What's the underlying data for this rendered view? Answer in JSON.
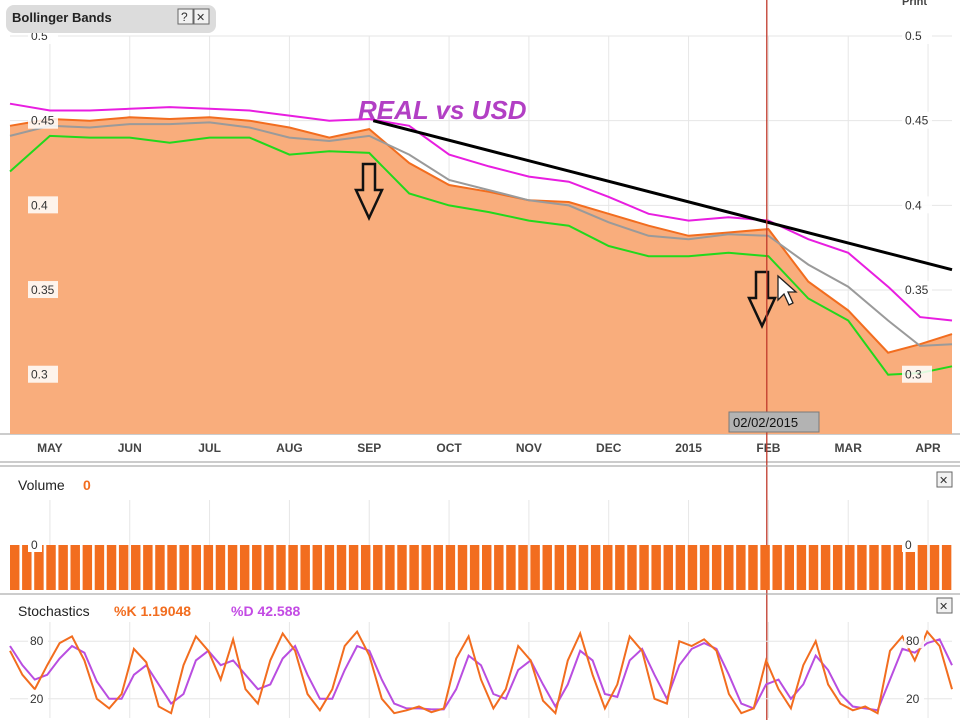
{
  "panel": {
    "title": "Bollinger Bands",
    "help_label": "?",
    "close_label": "✕",
    "print_label": "Print"
  },
  "annotation": {
    "title": "REAL vs USD",
    "date_label": "02/02/2015"
  },
  "volume_panel": {
    "label": "Volume",
    "value": "0",
    "close_label": "✕"
  },
  "stochastics_panel": {
    "label": "Stochastics",
    "k_label": "%K 1.19048",
    "d_label": "%D 42.588",
    "close_label": "✕"
  },
  "colors": {
    "area_fill": "#f9ad7c",
    "price_line": "#f26d1f",
    "upper_band": "#e81ee0",
    "lower_band": "#22d81c",
    "middle_band": "#9a9a9a",
    "volume_bar": "#f26d1f",
    "stoch_k": "#f26d1f",
    "stoch_d": "#b94ee0",
    "cursor_line": "#c0392b"
  },
  "chart_data": [
    {
      "type": "area",
      "title": "Bollinger Bands",
      "ylim": [
        0.265,
        0.5
      ],
      "ylabel": "",
      "xlabel": "",
      "y_ticks": [
        "0.5",
        "0.45",
        "0.4",
        "0.35",
        "0.3"
      ],
      "x_tick_labels": [
        "MAY",
        "JUN",
        "JUL",
        "AUG",
        "SEP",
        "OCT",
        "NOV",
        "DEC",
        "2015",
        "FEB",
        "MAR",
        "APR"
      ],
      "x_tick_pos": [
        0.5,
        1.5,
        2.5,
        3.5,
        4.5,
        5.5,
        6.5,
        7.5,
        8.5,
        9.5,
        10.5,
        11.5
      ],
      "xlim": [
        0,
        11.8
      ],
      "grid": true,
      "x": [
        0,
        0.5,
        1,
        1.5,
        2,
        2.5,
        3,
        3.5,
        4,
        4.5,
        5,
        5.5,
        6,
        6.5,
        7,
        7.5,
        8,
        8.5,
        9,
        9.5,
        10,
        10.5,
        11,
        11.4,
        11.8
      ],
      "series": [
        {
          "key": "price",
          "values": [
            0.447,
            0.451,
            0.45,
            0.452,
            0.451,
            0.452,
            0.45,
            0.446,
            0.44,
            0.445,
            0.425,
            0.412,
            0.408,
            0.403,
            0.402,
            0.395,
            0.388,
            0.382,
            0.384,
            0.386,
            0.355,
            0.338,
            0.313,
            0.318,
            0.324
          ]
        },
        {
          "key": "upper",
          "values": [
            0.46,
            0.456,
            0.456,
            0.457,
            0.458,
            0.457,
            0.456,
            0.453,
            0.45,
            0.451,
            0.447,
            0.43,
            0.423,
            0.417,
            0.414,
            0.405,
            0.395,
            0.391,
            0.393,
            0.391,
            0.38,
            0.372,
            0.352,
            0.334,
            0.332
          ]
        },
        {
          "key": "middle",
          "values": [
            0.441,
            0.447,
            0.446,
            0.448,
            0.448,
            0.449,
            0.446,
            0.44,
            0.438,
            0.441,
            0.43,
            0.415,
            0.409,
            0.403,
            0.4,
            0.39,
            0.382,
            0.38,
            0.383,
            0.382,
            0.365,
            0.352,
            0.332,
            0.317,
            0.318
          ]
        },
        {
          "key": "lower",
          "values": [
            0.42,
            0.441,
            0.44,
            0.44,
            0.437,
            0.44,
            0.44,
            0.43,
            0.432,
            0.431,
            0.407,
            0.4,
            0.396,
            0.391,
            0.388,
            0.376,
            0.37,
            0.37,
            0.372,
            0.37,
            0.345,
            0.332,
            0.3,
            0.301,
            0.305
          ]
        }
      ],
      "trendline": {
        "from": [
          4.55,
          0.45
        ],
        "to": [
          11.8,
          0.362
        ]
      },
      "cursor_x": 9.48
    },
    {
      "type": "bar",
      "title": "Volume",
      "ylim": [
        0,
        1
      ],
      "y_ticks": [
        "0"
      ],
      "bar_count": 78,
      "bar_level": 0.5
    },
    {
      "type": "line",
      "title": "Stochastics",
      "ylim": [
        0,
        100
      ],
      "y_ticks": [
        "80",
        "20"
      ],
      "series": [
        {
          "key": "k",
          "values": [
            70,
            45,
            30,
            55,
            78,
            85,
            60,
            20,
            10,
            25,
            72,
            58,
            12,
            5,
            55,
            85,
            70,
            40,
            82,
            30,
            15,
            60,
            88,
            70,
            25,
            8,
            30,
            75,
            90,
            65,
            20,
            5,
            8,
            12,
            6,
            10,
            62,
            85,
            40,
            10,
            30,
            75,
            60,
            18,
            5,
            60,
            88,
            45,
            10,
            35,
            85,
            70,
            20,
            15,
            80,
            75,
            82,
            70,
            25,
            5,
            10,
            60,
            30,
            10,
            55,
            80,
            35,
            15,
            8,
            12,
            5,
            70,
            85,
            60,
            90,
            75,
            30
          ]
        },
        {
          "key": "d",
          "values": [
            75,
            55,
            40,
            45,
            62,
            75,
            68,
            38,
            20,
            20,
            45,
            55,
            35,
            15,
            25,
            60,
            70,
            55,
            60,
            45,
            30,
            35,
            62,
            75,
            45,
            20,
            20,
            50,
            75,
            70,
            40,
            15,
            10,
            10,
            9,
            9,
            30,
            65,
            55,
            25,
            20,
            50,
            60,
            35,
            12,
            35,
            70,
            60,
            25,
            22,
            60,
            72,
            45,
            20,
            55,
            72,
            78,
            72,
            45,
            15,
            10,
            35,
            40,
            20,
            35,
            65,
            50,
            25,
            12,
            10,
            8,
            40,
            72,
            68,
            78,
            82,
            55
          ]
        }
      ]
    }
  ]
}
